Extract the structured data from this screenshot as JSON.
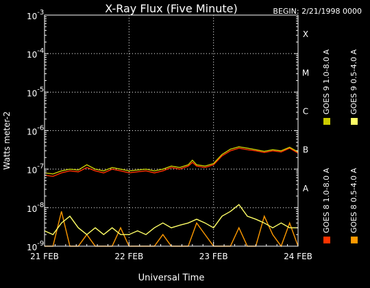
{
  "chart_data": {
    "type": "line",
    "title": "X-Ray Flux (Five Minute)",
    "begin_label": "BEGIN: 2/21/1998 0000",
    "xlabel": "Universal Time",
    "ylabel": "Watts meter-2",
    "xlim_days": [
      0,
      3
    ],
    "ylim_log10": [
      -9,
      -3
    ],
    "scale": "log",
    "x_ticks": [
      {
        "day": 0,
        "label": "21 FEB"
      },
      {
        "day": 1,
        "label": "22 FEB"
      },
      {
        "day": 2,
        "label": "23 FEB"
      },
      {
        "day": 3,
        "label": "24 FEB"
      }
    ],
    "y_ticks": [
      {
        "exp": -9,
        "base": "10",
        "sup": "-9"
      },
      {
        "exp": -8,
        "base": "10",
        "sup": "-8"
      },
      {
        "exp": -7,
        "base": "10",
        "sup": "-7"
      },
      {
        "exp": -6,
        "base": "10",
        "sup": "-6"
      },
      {
        "exp": -5,
        "base": "10",
        "sup": "-5"
      },
      {
        "exp": -4,
        "base": "10",
        "sup": "-4"
      },
      {
        "exp": -3,
        "base": "10",
        "sup": "-3"
      }
    ],
    "flare_classes": [
      {
        "exp": -4,
        "label": "X"
      },
      {
        "exp": -5,
        "label": "M"
      },
      {
        "exp": -6,
        "label": "C"
      },
      {
        "exp": -7,
        "label": "B"
      },
      {
        "exp": -8,
        "label": "A"
      }
    ],
    "grid": true,
    "legend_position": "right",
    "series": [
      {
        "name": "GOES 8 1.0-8.0 A",
        "color": "#ff3300",
        "x": [
          0.0,
          0.1,
          0.2,
          0.3,
          0.4,
          0.5,
          0.6,
          0.7,
          0.8,
          0.9,
          1.0,
          1.1,
          1.2,
          1.3,
          1.4,
          1.5,
          1.6,
          1.7,
          1.75,
          1.8,
          1.9,
          2.0,
          2.1,
          2.2,
          2.3,
          2.4,
          2.5,
          2.6,
          2.7,
          2.8,
          2.9,
          3.0
        ],
        "values": [
          7e-08,
          6.5e-08,
          8e-08,
          9e-08,
          8.5e-08,
          1.1e-07,
          9e-08,
          8e-08,
          1e-07,
          9e-08,
          8e-08,
          8.5e-08,
          9e-08,
          8e-08,
          9e-08,
          1.1e-07,
          1e-07,
          1.2e-07,
          1.5e-07,
          1.2e-07,
          1.1e-07,
          1.3e-07,
          2.2e-07,
          3e-07,
          3.5e-07,
          3.2e-07,
          3e-07,
          2.7e-07,
          3e-07,
          2.8e-07,
          3.5e-07,
          2.6e-07
        ]
      },
      {
        "name": "GOES 8 0.5-4.0 A",
        "color": "#ff9900",
        "x": [
          0.0,
          0.1,
          0.2,
          0.3,
          0.4,
          0.5,
          0.6,
          0.7,
          0.8,
          0.9,
          1.0,
          1.1,
          1.2,
          1.3,
          1.4,
          1.5,
          1.6,
          1.7,
          1.8,
          1.9,
          2.0,
          2.1,
          2.2,
          2.3,
          2.4,
          2.5,
          2.6,
          2.7,
          2.8,
          2.9,
          3.0
        ],
        "values": [
          1e-09,
          1e-09,
          8e-09,
          1e-09,
          1e-09,
          2e-09,
          1e-09,
          1e-09,
          1e-09,
          3e-09,
          1e-09,
          1e-09,
          1e-09,
          1e-09,
          2e-09,
          1e-09,
          1e-09,
          1e-09,
          4e-09,
          2e-09,
          1e-09,
          1e-09,
          1e-09,
          3e-09,
          1e-09,
          1e-09,
          6e-09,
          2e-09,
          1e-09,
          4e-09,
          1e-09
        ]
      },
      {
        "name": "GOES 9 1.0-8.0 A",
        "color": "#cccc00",
        "x": [
          0.0,
          0.1,
          0.2,
          0.3,
          0.4,
          0.5,
          0.6,
          0.7,
          0.8,
          0.9,
          1.0,
          1.1,
          1.2,
          1.3,
          1.4,
          1.5,
          1.6,
          1.7,
          1.75,
          1.8,
          1.9,
          2.0,
          2.1,
          2.2,
          2.3,
          2.4,
          2.5,
          2.6,
          2.7,
          2.8,
          2.9,
          3.0
        ],
        "values": [
          8e-08,
          7.5e-08,
          9e-08,
          1e-07,
          9.5e-08,
          1.3e-07,
          1e-07,
          9e-08,
          1.1e-07,
          1e-07,
          9e-08,
          9.5e-08,
          1e-07,
          9e-08,
          1e-07,
          1.2e-07,
          1.1e-07,
          1.3e-07,
          1.7e-07,
          1.3e-07,
          1.2e-07,
          1.4e-07,
          2.4e-07,
          3.3e-07,
          3.8e-07,
          3.5e-07,
          3.2e-07,
          2.9e-07,
          3.2e-07,
          3e-07,
          3.7e-07,
          2.8e-07
        ]
      },
      {
        "name": "GOES 9 0.5-4.0 A",
        "color": "#ffff66",
        "x": [
          0.0,
          0.1,
          0.2,
          0.3,
          0.4,
          0.5,
          0.6,
          0.7,
          0.8,
          0.9,
          1.0,
          1.1,
          1.2,
          1.3,
          1.4,
          1.5,
          1.6,
          1.7,
          1.8,
          1.9,
          2.0,
          2.1,
          2.2,
          2.3,
          2.4,
          2.5,
          2.6,
          2.7,
          2.8,
          2.9,
          3.0
        ],
        "values": [
          2.5e-09,
          2e-09,
          4e-09,
          6e-09,
          3e-09,
          2e-09,
          3e-09,
          2e-09,
          3e-09,
          2e-09,
          2e-09,
          2.5e-09,
          2e-09,
          3e-09,
          4e-09,
          3e-09,
          3.5e-09,
          4e-09,
          5e-09,
          4e-09,
          3e-09,
          6e-09,
          8e-09,
          1.2e-08,
          6e-09,
          5e-09,
          4e-09,
          3e-09,
          4e-09,
          3e-09,
          3e-09
        ]
      }
    ]
  }
}
